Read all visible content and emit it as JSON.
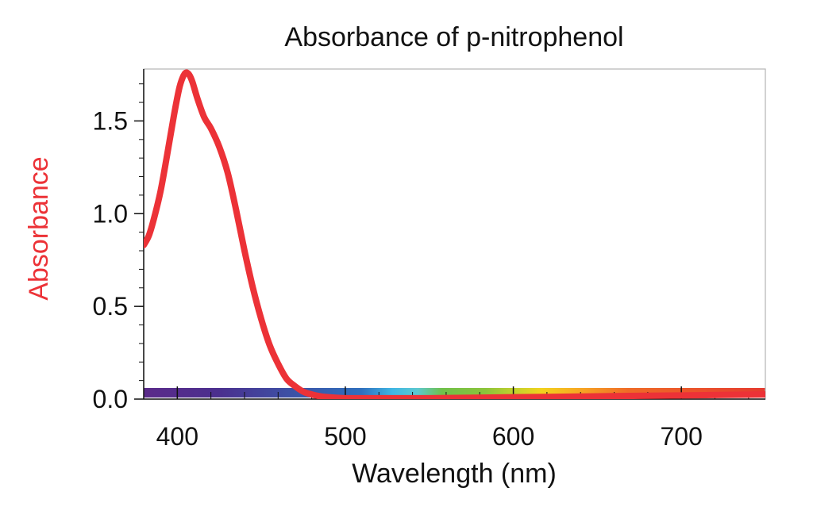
{
  "chart_data": {
    "type": "line",
    "title": "Absorbance of p-nitrophenol",
    "xlabel": "Wavelength (nm)",
    "ylabel": "Absorbance",
    "xlim": [
      380,
      750
    ],
    "ylim": [
      0,
      1.78
    ],
    "x_ticks": [
      400,
      500,
      600,
      700
    ],
    "x_tick_labels": [
      "400",
      "500",
      "600",
      "700"
    ],
    "x_minor_step": 20,
    "y_ticks": [
      0.0,
      0.5,
      1.0,
      1.5
    ],
    "y_tick_labels": [
      "0.0",
      "0.5",
      "1.0",
      "1.5"
    ],
    "y_minor_step": 0.1,
    "grid": false,
    "spectrum_bar": true,
    "colors": {
      "series": "#ec3237",
      "ylabel": "#ec3237",
      "frame": "#b5b5b5",
      "axis": "#111111",
      "text": "#111111"
    },
    "series": [
      {
        "color": "#ec3237",
        "x": [
          380,
          383,
          386,
          390,
          394,
          398,
          401,
          403,
          405,
          407,
          409,
          412,
          416,
          420,
          425,
          430,
          435,
          440,
          445,
          450,
          455,
          460,
          465,
          470,
          475,
          480,
          485,
          490,
          500,
          520,
          550,
          600,
          650,
          700,
          750
        ],
        "y": [
          0.83,
          0.88,
          0.97,
          1.12,
          1.32,
          1.53,
          1.67,
          1.73,
          1.76,
          1.75,
          1.71,
          1.62,
          1.52,
          1.46,
          1.36,
          1.22,
          1.02,
          0.8,
          0.6,
          0.43,
          0.29,
          0.19,
          0.11,
          0.07,
          0.04,
          0.025,
          0.015,
          0.01,
          0.005,
          0.005,
          0.005,
          0.01,
          0.015,
          0.02,
          0.025
        ]
      }
    ]
  }
}
